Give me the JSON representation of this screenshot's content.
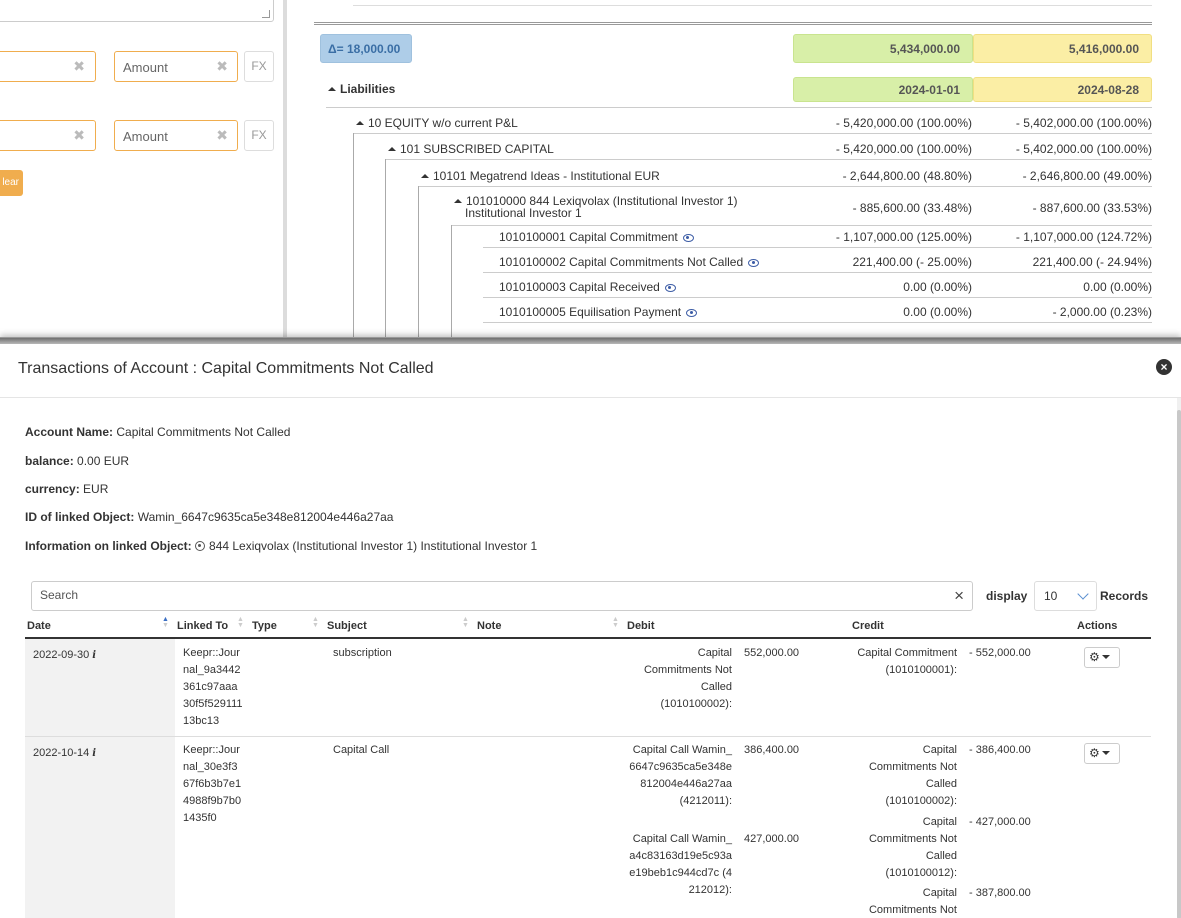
{
  "filters": {
    "amount_placeholder_1": "Amount",
    "amount_placeholder_2": "Amount",
    "fx_label_1": "FX",
    "fx_label_2": "FX",
    "clear_label": "lear"
  },
  "balance_sheet": {
    "delta": "Δ= 18,000.00",
    "total_a": "5,434,000.00",
    "total_b": "5,416,000.00",
    "section": "Liabilities",
    "date_a": "2024-01-01",
    "date_b": "2024-08-28",
    "rows": [
      {
        "label": "10 EQUITY w/o current P&L",
        "a": "- 5,420,000.00 (100.00%)",
        "b": "- 5,402,000.00 (100.00%)"
      },
      {
        "label": "101 SUBSCRIBED CAPITAL",
        "a": "- 5,420,000.00 (100.00%)",
        "b": "- 5,402,000.00 (100.00%)"
      },
      {
        "label": "10101 Megatrend Ideas - Institutional EUR",
        "a": "- 2,644,800.00 (48.80%)",
        "b": "- 2,646,800.00 (49.00%)"
      },
      {
        "label_line1": "101010000 844 Lexiqvolax (Institutional Investor 1)",
        "label_line2": "Institutional Investor 1",
        "a": "- 885,600.00 (33.48%)",
        "b": "- 887,600.00 (33.53%)"
      },
      {
        "label": "1010100001 Capital Commitment",
        "a": "- 1,107,000.00 (125.00%)",
        "b": "- 1,107,000.00 (124.72%)"
      },
      {
        "label": "1010100002 Capital Commitments Not Called",
        "a": "221,400.00 (- 25.00%)",
        "b": "221,400.00 (- 24.94%)"
      },
      {
        "label": "1010100003 Capital Received",
        "a": "0.00 (0.00%)",
        "b": "0.00 (0.00%)"
      },
      {
        "label": "1010100005 Equilisation Payment",
        "a": "0.00 (0.00%)",
        "b": "- 2,000.00 (0.23%)"
      }
    ]
  },
  "modal": {
    "title": "Transactions of Account : Capital Commitments Not Called",
    "account_name_label": "Account Name:",
    "account_name": "Capital Commitments Not Called",
    "balance_label": "balance:",
    "balance": "0.00 EUR",
    "currency_label": "currency:",
    "currency": "EUR",
    "linked_id_label": "ID of linked Object:",
    "linked_id": "Wamin_6647c9635ca5e348e812004e446a27aa",
    "linked_info_label": "Information on linked Object:",
    "linked_info": "844 Lexiqvolax (Institutional Investor 1) Institutional Investor 1",
    "search_placeholder": "Search",
    "display_label": "display",
    "records_per_page": "10",
    "records_label": "Records",
    "columns": [
      "Date",
      "Linked To",
      "Type",
      "Subject",
      "Note",
      "Debit",
      "Credit",
      "Actions"
    ],
    "rows": [
      {
        "date": "2022-09-30",
        "linked_to": "Keepr::Journal_9a3442361c97aaa30f5f52911113bc13",
        "type": "",
        "subject": "subscription",
        "note": "",
        "debit_account": "Capital Commitments Not Called (1010100002):",
        "debit_amount": "552,000.00",
        "credit_account": "Capital Commitment (1010100001):",
        "credit_amount": "- 552,000.00"
      },
      {
        "date": "2022-10-14",
        "linked_to": "Keepr::Journal_30e3f367f6b3b7e14988f9b7b01435f0",
        "type": "",
        "subject": "Capital Call",
        "note": "",
        "debit_account_1": "Capital Call Wamin_6647c9635ca5e348e812004e446a27aa (4212011):",
        "debit_amount_1": "386,400.00",
        "debit_account_2": "Capital Call Wamin_a4c83163d19e5c93ae19beb1c944cd7c (4212012):",
        "debit_amount_2": "427,000.00",
        "credit_account_1": "Capital Commitments Not Called (1010100002):",
        "credit_amount_1": "- 386,400.00",
        "credit_account_2": "Capital Commitments Not Called (1010100012):",
        "credit_amount_2": "- 427,000.00",
        "credit_account_3": "Capital Commitments Not",
        "credit_amount_3": "- 387,800.00"
      }
    ]
  }
}
